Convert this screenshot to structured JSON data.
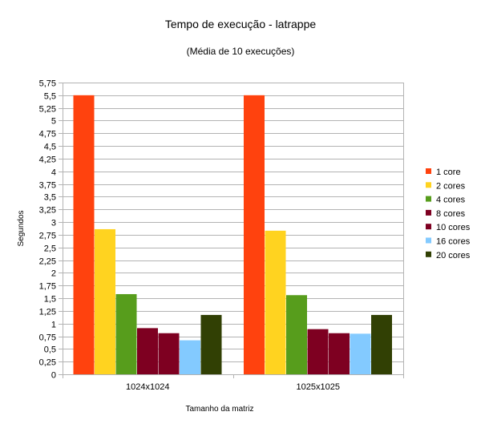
{
  "chart_data": {
    "type": "bar",
    "title": "Tempo de execução - latrappe",
    "subtitle": "(Média de 10 execuções)",
    "xlabel": "Tamanho da matriz",
    "ylabel": "Segundos",
    "categories": [
      "1024x1024",
      "1025x1025"
    ],
    "ylim": [
      0,
      5.75
    ],
    "ytick_step": 0.25,
    "ytick_labels": [
      "0",
      "0,25",
      "0,5",
      "0,75",
      "1",
      "1,25",
      "1,5",
      "1,75",
      "2",
      "2,25",
      "2,5",
      "2,75",
      "3",
      "3,25",
      "3,5",
      "3,75",
      "4",
      "4,25",
      "4,5",
      "4,75",
      "5",
      "5,25",
      "5,5",
      "5,75"
    ],
    "grid": true,
    "legend_position": "right",
    "series": [
      {
        "name": "1 core",
        "color": "#ff420e",
        "values": [
          5.5,
          5.5
        ]
      },
      {
        "name": "2 cores",
        "color": "#ffd320",
        "values": [
          2.86,
          2.83
        ]
      },
      {
        "name": "4 cores",
        "color": "#579d1c",
        "values": [
          1.58,
          1.56
        ]
      },
      {
        "name": "8 cores",
        "color": "#7e0021",
        "values": [
          0.91,
          0.89
        ]
      },
      {
        "name": "10 cores",
        "color": "#7e0021",
        "values": [
          0.81,
          0.81
        ]
      },
      {
        "name": "16 cores",
        "color": "#83caff",
        "values": [
          0.67,
          0.8
        ]
      },
      {
        "name": "20 cores",
        "color": "#314004",
        "values": [
          1.17,
          1.17
        ]
      }
    ]
  }
}
